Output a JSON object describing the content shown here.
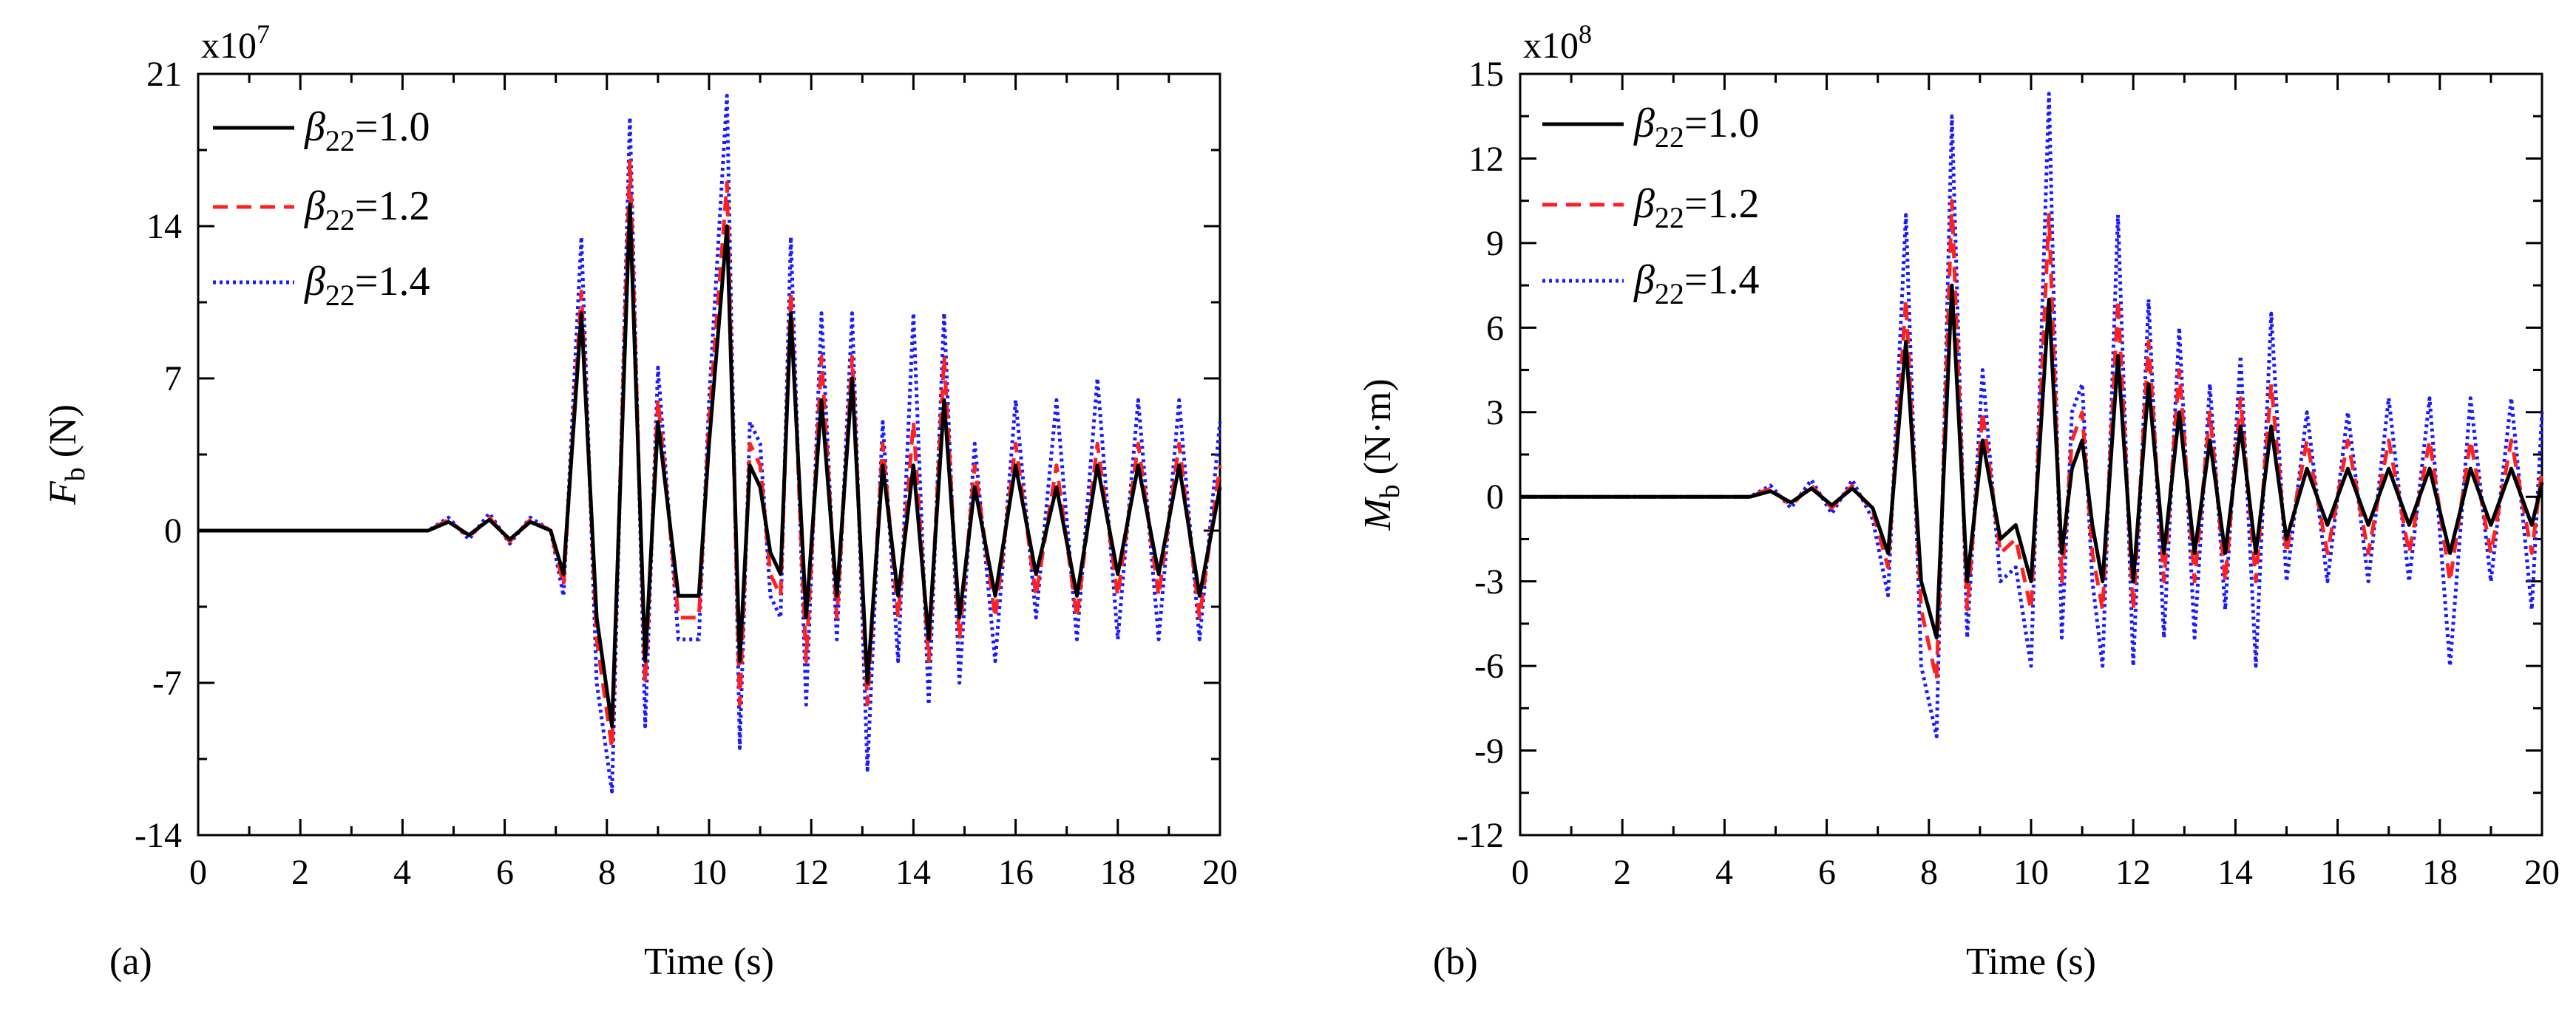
{
  "chart_data": [
    {
      "type": "line",
      "panel_label": "(a)",
      "xlabel": "Time (s)",
      "ylabel_main": "F",
      "ylabel_sub": "b",
      "ylabel_unit": " (N)",
      "multiplier_base": "x10",
      "multiplier_exp": "7",
      "xlim": [
        0,
        20
      ],
      "ylim": [
        -14,
        21
      ],
      "xticks": [
        0,
        2,
        4,
        6,
        8,
        10,
        12,
        14,
        16,
        18,
        20
      ],
      "yticks": [
        -14,
        -7,
        0,
        7,
        14,
        21
      ],
      "xtick_labels": [
        "0",
        "2",
        "4",
        "6",
        "8",
        "10",
        "12",
        "14",
        "16",
        "18",
        "20"
      ],
      "ytick_labels": [
        "-14",
        "-7",
        "0",
        "7",
        "14",
        "21"
      ],
      "legend_position": "top-left",
      "series": [
        {
          "name": "β22=1.0",
          "sym": "β",
          "sub": "22",
          "val": "=1.0",
          "color": "#000000",
          "style": "solid",
          "x": [
            0,
            4.5,
            4.9,
            5.3,
            5.7,
            6.1,
            6.5,
            6.9,
            7.15,
            7.5,
            7.8,
            8.1,
            8.45,
            8.75,
            9.0,
            9.4,
            9.8,
            10.0,
            10.35,
            10.6,
            10.8,
            11.0,
            11.2,
            11.4,
            11.6,
            11.9,
            12.2,
            12.5,
            12.8,
            13.1,
            13.4,
            13.7,
            14.0,
            14.3,
            14.6,
            14.9,
            15.2,
            15.6,
            16.0,
            16.4,
            16.8,
            17.2,
            17.6,
            18.0,
            18.4,
            18.8,
            19.2,
            19.6,
            20.0
          ],
          "y": [
            0,
            0,
            0.4,
            -0.2,
            0.5,
            -0.4,
            0.4,
            0,
            -2,
            10,
            -4,
            -9,
            15,
            -6,
            5,
            -3,
            -3,
            4,
            14,
            -6,
            3,
            2,
            -1,
            -2,
            10,
            -4,
            6,
            -3,
            7,
            -7,
            3,
            -3,
            3,
            -5,
            6,
            -4,
            2,
            -3,
            3,
            -2,
            2,
            -3,
            3,
            -2,
            3,
            -2,
            3,
            -3,
            2
          ]
        },
        {
          "name": "β22=1.2",
          "sym": "β",
          "sub": "22",
          "val": "=1.2",
          "color": "#ff2020",
          "style": "dashed",
          "x": [
            0,
            4.5,
            4.9,
            5.3,
            5.7,
            6.1,
            6.5,
            6.9,
            7.15,
            7.5,
            7.8,
            8.1,
            8.45,
            8.75,
            9.0,
            9.4,
            9.8,
            10.0,
            10.35,
            10.6,
            10.8,
            11.0,
            11.2,
            11.4,
            11.6,
            11.9,
            12.2,
            12.5,
            12.8,
            13.1,
            13.4,
            13.7,
            14.0,
            14.3,
            14.6,
            14.9,
            15.2,
            15.6,
            16.0,
            16.4,
            16.8,
            17.2,
            17.6,
            18.0,
            18.4,
            18.8,
            19.2,
            19.6,
            20.0
          ],
          "y": [
            0,
            0,
            0.5,
            -0.3,
            0.6,
            -0.5,
            0.5,
            0,
            -2.5,
            11,
            -5,
            -10,
            17,
            -7,
            6,
            -4,
            -4,
            5,
            16,
            -8,
            4,
            3,
            -2,
            -3,
            11,
            -6,
            8,
            -4,
            8,
            -8,
            4,
            -4,
            5,
            -6,
            8,
            -5,
            3,
            -4,
            4,
            -3,
            3,
            -4,
            4,
            -3,
            4,
            -3,
            4,
            -4,
            3
          ]
        },
        {
          "name": "β22=1.4",
          "sym": "β",
          "sub": "22",
          "val": "=1.4",
          "color": "#1a1aff",
          "style": "dotted",
          "x": [
            0,
            4.5,
            4.9,
            5.3,
            5.7,
            6.1,
            6.5,
            6.9,
            7.15,
            7.5,
            7.8,
            8.1,
            8.45,
            8.75,
            9.0,
            9.4,
            9.8,
            10.0,
            10.35,
            10.6,
            10.8,
            11.0,
            11.2,
            11.4,
            11.6,
            11.9,
            12.2,
            12.5,
            12.8,
            13.1,
            13.4,
            13.7,
            14.0,
            14.3,
            14.6,
            14.9,
            15.2,
            15.6,
            16.0,
            16.4,
            16.8,
            17.2,
            17.6,
            18.0,
            18.4,
            18.8,
            19.2,
            19.6,
            20.0
          ],
          "y": [
            0,
            0,
            0.6,
            -0.4,
            0.8,
            -0.6,
            0.6,
            0,
            -3,
            13.5,
            -7,
            -12,
            19,
            -9,
            7.5,
            -5,
            -5,
            6,
            20,
            -10,
            5,
            4,
            -3,
            -4,
            13.5,
            -8,
            10,
            -5,
            10,
            -11,
            5,
            -6,
            10,
            -8,
            10,
            -7,
            4,
            -6,
            6,
            -4,
            6,
            -5,
            7,
            -5,
            6,
            -5,
            6,
            -5,
            5
          ]
        }
      ]
    },
    {
      "type": "line",
      "panel_label": "(b)",
      "xlabel": "Time (s)",
      "ylabel_main": "M",
      "ylabel_sub": "b",
      "ylabel_unit": " (N·m)",
      "multiplier_base": "x10",
      "multiplier_exp": "8",
      "xlim": [
        0,
        20
      ],
      "ylim": [
        -12,
        15
      ],
      "xticks": [
        0,
        2,
        4,
        6,
        8,
        10,
        12,
        14,
        16,
        18,
        20
      ],
      "yticks": [
        -12,
        -9,
        -6,
        -3,
        0,
        3,
        6,
        9,
        12,
        15
      ],
      "xtick_labels": [
        "0",
        "2",
        "4",
        "6",
        "8",
        "10",
        "12",
        "14",
        "16",
        "18",
        "20"
      ],
      "ytick_labels": [
        "-12",
        "-9",
        "-6",
        "-3",
        "0",
        "3",
        "6",
        "9",
        "12",
        "15"
      ],
      "legend_position": "top-left",
      "series": [
        {
          "name": "β22=1.0",
          "sym": "β",
          "sub": "22",
          "val": "=1.0",
          "color": "#000000",
          "style": "solid",
          "x": [
            0,
            4.5,
            4.9,
            5.3,
            5.7,
            6.1,
            6.5,
            6.9,
            7.2,
            7.55,
            7.85,
            8.15,
            8.45,
            8.75,
            9.05,
            9.4,
            9.7,
            10.0,
            10.35,
            10.6,
            10.8,
            11.0,
            11.2,
            11.4,
            11.7,
            12.0,
            12.3,
            12.6,
            12.9,
            13.2,
            13.5,
            13.8,
            14.1,
            14.4,
            14.7,
            15.0,
            15.4,
            15.8,
            16.2,
            16.6,
            17.0,
            17.4,
            17.8,
            18.2,
            18.6,
            19.0,
            19.4,
            19.8,
            20.0
          ],
          "y": [
            0,
            0,
            0.2,
            -0.2,
            0.3,
            -0.3,
            0.3,
            -0.4,
            -2,
            5.5,
            -3,
            -5,
            7.5,
            -3,
            2,
            -1.5,
            -1,
            -3,
            7,
            -2,
            1,
            2,
            -1,
            -3,
            5,
            -3,
            4,
            -2,
            3,
            -2,
            2,
            -2,
            2.5,
            -2,
            2.5,
            -1.5,
            1,
            -1,
            1,
            -1,
            1,
            -1,
            1,
            -2,
            1,
            -1,
            1,
            -1,
            0.5
          ]
        },
        {
          "name": "β22=1.2",
          "sym": "β",
          "sub": "22",
          "val": "=1.2",
          "color": "#ff2020",
          "style": "dashed",
          "x": [
            0,
            4.5,
            4.9,
            5.3,
            5.7,
            6.1,
            6.5,
            6.9,
            7.2,
            7.55,
            7.85,
            8.15,
            8.45,
            8.75,
            9.05,
            9.4,
            9.7,
            10.0,
            10.35,
            10.6,
            10.8,
            11.0,
            11.2,
            11.4,
            11.7,
            12.0,
            12.3,
            12.6,
            12.9,
            13.2,
            13.5,
            13.8,
            14.1,
            14.4,
            14.7,
            15.0,
            15.4,
            15.8,
            16.2,
            16.6,
            17.0,
            17.4,
            17.8,
            18.2,
            18.6,
            19.0,
            19.4,
            19.8,
            20.0
          ],
          "y": [
            0,
            0,
            0.3,
            -0.3,
            0.4,
            -0.4,
            0.4,
            -0.5,
            -2.5,
            7,
            -4,
            -6.5,
            10.5,
            -4,
            3,
            -2,
            -1.5,
            -4,
            10,
            -3,
            2,
            3,
            -2,
            -4,
            7,
            -4,
            5.5,
            -3,
            4.5,
            -3,
            3,
            -3,
            3.5,
            -3,
            4,
            -2,
            2,
            -2,
            2,
            -2,
            2,
            -2,
            2,
            -3,
            2,
            -2,
            2,
            -2,
            1
          ]
        },
        {
          "name": "β22=1.4",
          "sym": "β",
          "sub": "22",
          "val": "=1.4",
          "color": "#1a1aff",
          "style": "dotted",
          "x": [
            0,
            4.5,
            4.9,
            5.3,
            5.7,
            6.1,
            6.5,
            6.9,
            7.2,
            7.55,
            7.85,
            8.15,
            8.45,
            8.75,
            9.05,
            9.4,
            9.7,
            10.0,
            10.35,
            10.6,
            10.8,
            11.0,
            11.2,
            11.4,
            11.7,
            12.0,
            12.3,
            12.6,
            12.9,
            13.2,
            13.5,
            13.8,
            14.1,
            14.4,
            14.7,
            15.0,
            15.4,
            15.8,
            16.2,
            16.6,
            17.0,
            17.4,
            17.8,
            18.2,
            18.6,
            19.0,
            19.4,
            19.8,
            20.0
          ],
          "y": [
            0,
            0,
            0.4,
            -0.4,
            0.6,
            -0.6,
            0.6,
            -0.8,
            -3.5,
            10,
            -6,
            -8.5,
            13.5,
            -5,
            4.5,
            -3,
            -2.5,
            -6,
            14.3,
            -5,
            3,
            4,
            -3,
            -6,
            10,
            -6,
            7,
            -5,
            6,
            -5,
            4,
            -4,
            5,
            -6,
            6.5,
            -3,
            3,
            -3,
            3,
            -3,
            3.5,
            -3,
            3.5,
            -6,
            3.5,
            -3,
            3.5,
            -4,
            3
          ]
        }
      ]
    }
  ]
}
